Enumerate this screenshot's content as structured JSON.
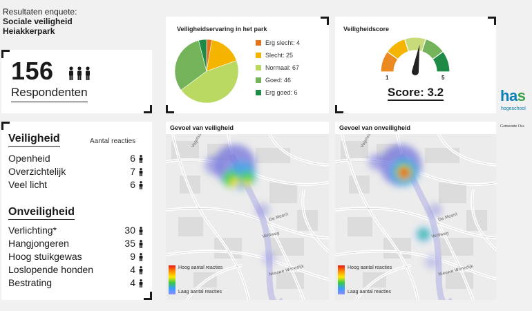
{
  "intro": {
    "line1": "Resultaten enquete:",
    "line2": "Sociale veiligheid",
    "line3": "Heiakkerpark"
  },
  "respondents": {
    "count": "156",
    "label": "Respondenten",
    "icon": "people-icon"
  },
  "pie_panel": {
    "title": "Veiligheidservaring in het park",
    "legend": [
      {
        "label": "Erg slecht: 4",
        "color": "#e6731e"
      },
      {
        "label": "Slecht: 25",
        "color": "#f5b400"
      },
      {
        "label": "Normaal: 67",
        "color": "#b9d963"
      },
      {
        "label": "Goed: 46",
        "color": "#74b35a"
      },
      {
        "label": "Erg goed: 6",
        "color": "#1f8a46"
      }
    ]
  },
  "chart_data": {
    "type": "pie",
    "title": "Veiligheidservaring in het park",
    "categories": [
      "Erg slecht",
      "Slecht",
      "Normaal",
      "Goed",
      "Erg goed"
    ],
    "values": [
      4,
      25,
      67,
      46,
      6
    ],
    "colors": [
      "#e6731e",
      "#f5b400",
      "#b9d963",
      "#74b35a",
      "#1f8a46"
    ],
    "legend_position": "right"
  },
  "score_panel": {
    "title": "Veiligheidscore",
    "min_label": "1",
    "max_label": "5",
    "score_text": "Score: 3.2",
    "score": 3.2,
    "scale_min": 1,
    "scale_max": 5
  },
  "list": {
    "safe_header": "Veiligheid",
    "reactions_header": "Aantal reacties",
    "safe_items": [
      {
        "label": "Openheid",
        "value": "6"
      },
      {
        "label": "Overzichtelijk",
        "value": "7"
      },
      {
        "label": "Veel licht",
        "value": "6"
      }
    ],
    "unsafe_header": "Onveiligheid",
    "unsafe_items": [
      {
        "label": "Verlichting*",
        "value": "30"
      },
      {
        "label": "Hangjongeren",
        "value": "35"
      },
      {
        "label": "Hoog stuikgewas",
        "value": "9"
      },
      {
        "label": "Loslopende honden",
        "value": "4"
      },
      {
        "label": "Bestrating",
        "value": "4"
      }
    ]
  },
  "maps": {
    "safe_title": "Gevoel  van veiligheid",
    "unsafe_title": "Gevoel van onveiligheid",
    "legend_high": "Hoog aantal reacties",
    "legend_low": "Laag aantal reacties",
    "street_labels": [
      "Veldweg",
      "De Meent",
      "Nieuwe Wimedijk",
      "Vogelsang"
    ]
  },
  "logos": {
    "has_prefix": "ha",
    "has_suffix": "s",
    "has_sub": "hogeschool",
    "gemeente": "Gemeente Oss"
  }
}
